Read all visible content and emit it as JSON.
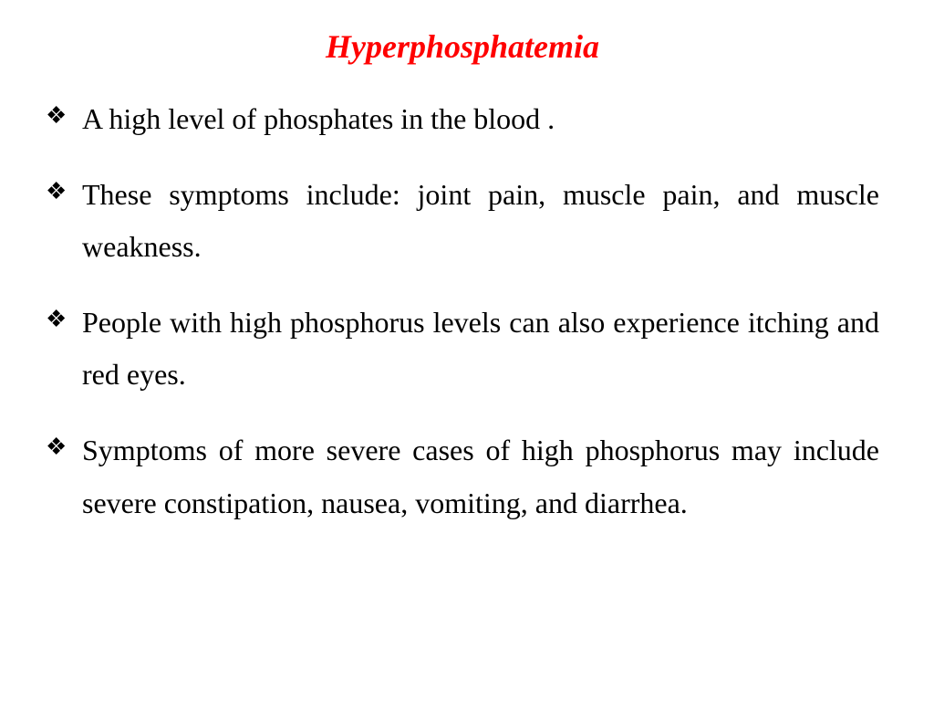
{
  "title": {
    "text": "Hyperphosphatemia",
    "color": "#ff0000",
    "fontsize": 36,
    "fontweight": "bold",
    "fontstyle": "italic"
  },
  "body": {
    "color": "#000000",
    "fontsize": 32,
    "bullet_glyph": "❖",
    "bullet_color": "#000000"
  },
  "items": [
    "A high level of phosphates in the blood .",
    "These symptoms include: joint pain, muscle pain, and muscle weakness.",
    "People with high phosphorus levels can also experience itching and red eyes.",
    "Symptoms of more severe cases of high phosphorus may include severe constipation, nausea, vomiting, and diarrhea."
  ]
}
